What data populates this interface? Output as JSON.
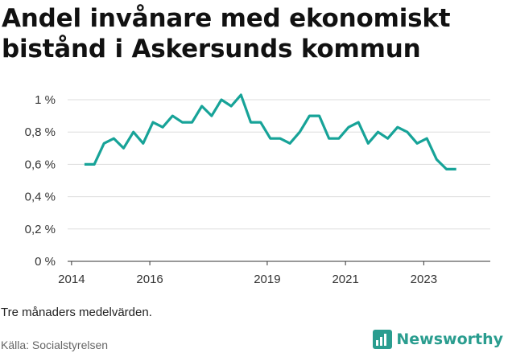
{
  "title": "Andel invånare med ekonomiskt bistånd i Askersunds kommun",
  "note": "Tre månaders medelvärden.",
  "source": "Källa: Socialstyrelsen",
  "brand": {
    "name": "Newsworthy",
    "color": "#2a9d8f"
  },
  "chart_data": {
    "type": "line",
    "title": "Andel invånare med ekonomiskt bistånd i Askersunds kommun",
    "xlabel": "",
    "ylabel": "",
    "ylim": [
      0,
      1.0
    ],
    "xlim": [
      2013.9,
      2024.7
    ],
    "grid": true,
    "line_color": "#17a398",
    "y_ticks": [
      {
        "value": 0,
        "label": "0 %"
      },
      {
        "value": 0.2,
        "label": "0,2 %"
      },
      {
        "value": 0.4,
        "label": "0,4 %"
      },
      {
        "value": 0.6,
        "label": "0,6 %"
      },
      {
        "value": 0.8,
        "label": "0,8 %"
      },
      {
        "value": 1.0,
        "label": "1 %"
      }
    ],
    "x_ticks": [
      {
        "value": 2014,
        "label": "2014"
      },
      {
        "value": 2016,
        "label": "2016"
      },
      {
        "value": 2019,
        "label": "2019"
      },
      {
        "value": 2021,
        "label": "2021"
      },
      {
        "value": 2023,
        "label": "2023"
      }
    ],
    "x": [
      2014.33,
      2014.58,
      2014.83,
      2015.08,
      2015.33,
      2015.58,
      2015.83,
      2016.08,
      2016.33,
      2016.58,
      2016.83,
      2017.08,
      2017.33,
      2017.58,
      2017.83,
      2018.08,
      2018.33,
      2018.58,
      2018.83,
      2019.08,
      2019.33,
      2019.58,
      2019.83,
      2020.08,
      2020.33,
      2020.58,
      2020.83,
      2021.08,
      2021.33,
      2021.58,
      2021.83,
      2022.08,
      2022.33,
      2022.58,
      2022.83,
      2023.08,
      2023.33,
      2023.58,
      2023.83
    ],
    "values": [
      0.6,
      0.6,
      0.73,
      0.76,
      0.7,
      0.8,
      0.73,
      0.86,
      0.83,
      0.9,
      0.86,
      0.86,
      0.96,
      0.9,
      1.0,
      0.96,
      1.03,
      0.86,
      0.86,
      0.76,
      0.76,
      0.73,
      0.8,
      0.9,
      0.9,
      0.76,
      0.76,
      0.83,
      0.86,
      0.73,
      0.8,
      0.76,
      0.83,
      0.8,
      0.73,
      0.76,
      0.63,
      0.57,
      0.57
    ]
  }
}
